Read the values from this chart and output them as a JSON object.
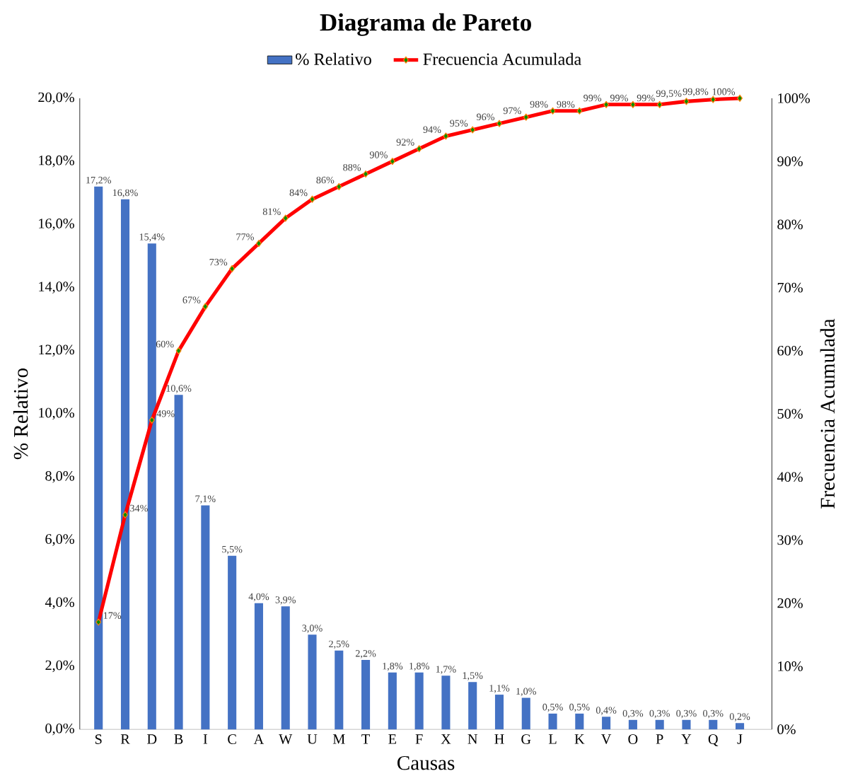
{
  "chart_data": {
    "type": "bar",
    "title": "Diagrama de Pareto",
    "xlabel": "Causas",
    "ylabel": "% Relativo",
    "y2label": "Frecuencia Acumulada",
    "categories": [
      "S",
      "R",
      "D",
      "B",
      "I",
      "C",
      "A",
      "W",
      "U",
      "M",
      "T",
      "E",
      "F",
      "X",
      "N",
      "H",
      "G",
      "L",
      "K",
      "V",
      "O",
      "P",
      "Y",
      "Q",
      "J"
    ],
    "series": [
      {
        "name": "% Relativo",
        "color": "#4472c4",
        "values": [
          17.2,
          16.8,
          15.4,
          10.6,
          7.1,
          5.5,
          4.0,
          3.9,
          3.0,
          2.5,
          2.2,
          1.8,
          1.8,
          1.7,
          1.5,
          1.1,
          1.0,
          0.5,
          0.5,
          0.4,
          0.3,
          0.3,
          0.3,
          0.3,
          0.2
        ],
        "value_labels": [
          "17,2%",
          "16,8%",
          "15,4%",
          "10,6%",
          "7,1%",
          "5,5%",
          "4,0%",
          "3,9%",
          "3,0%",
          "2,5%",
          "2,2%",
          "1,8%",
          "1,8%",
          "1,7%",
          "1,5%",
          "1,1%",
          "1,0%",
          "0,5%",
          "0,5%",
          "0,4%",
          "0,3%",
          "0,3%",
          "0,3%",
          "0,3%",
          "0,2%"
        ]
      },
      {
        "name": "Frecuencia Acumulada",
        "type": "line",
        "axis": "y2",
        "color": "#ff0000",
        "values": [
          17,
          34,
          49,
          60,
          67,
          73,
          77,
          81,
          84,
          86,
          88,
          90,
          92,
          94,
          95,
          96,
          97,
          98,
          98,
          99,
          99,
          99,
          99.5,
          99.8,
          100
        ],
        "value_labels": [
          "17%",
          "34%",
          "49%",
          "60%",
          "67%",
          "73%",
          "77%",
          "81%",
          "84%",
          "86%",
          "88%",
          "90%",
          "92%",
          "94%",
          "95%",
          "96%",
          "97%",
          "98%",
          "98%",
          "99%",
          "99%",
          "99%",
          "99,5%",
          "99,8%",
          "100%"
        ]
      }
    ],
    "ylim": [
      0,
      20
    ],
    "yticks": [
      {
        "value": 0,
        "label": "0,0%"
      },
      {
        "value": 2,
        "label": "2,0%"
      },
      {
        "value": 4,
        "label": "4,0%"
      },
      {
        "value": 6,
        "label": "6,0%"
      },
      {
        "value": 8,
        "label": "8,0%"
      },
      {
        "value": 10,
        "label": "10,0%"
      },
      {
        "value": 12,
        "label": "12,0%"
      },
      {
        "value": 14,
        "label": "14,0%"
      },
      {
        "value": 16,
        "label": "16,0%"
      },
      {
        "value": 18,
        "label": "18,0%"
      },
      {
        "value": 20,
        "label": "20,0%"
      }
    ],
    "y2lim": [
      0,
      100
    ],
    "y2ticks": [
      {
        "value": 0,
        "label": "0%"
      },
      {
        "value": 10,
        "label": "10%"
      },
      {
        "value": 20,
        "label": "20%"
      },
      {
        "value": 30,
        "label": "30%"
      },
      {
        "value": 40,
        "label": "40%"
      },
      {
        "value": 50,
        "label": "50%"
      },
      {
        "value": 60,
        "label": "60%"
      },
      {
        "value": 70,
        "label": "70%"
      },
      {
        "value": 80,
        "label": "80%"
      },
      {
        "value": 90,
        "label": "90%"
      },
      {
        "value": 100,
        "label": "100%"
      }
    ],
    "marker": "diamond",
    "legend": "top",
    "grid": false
  }
}
